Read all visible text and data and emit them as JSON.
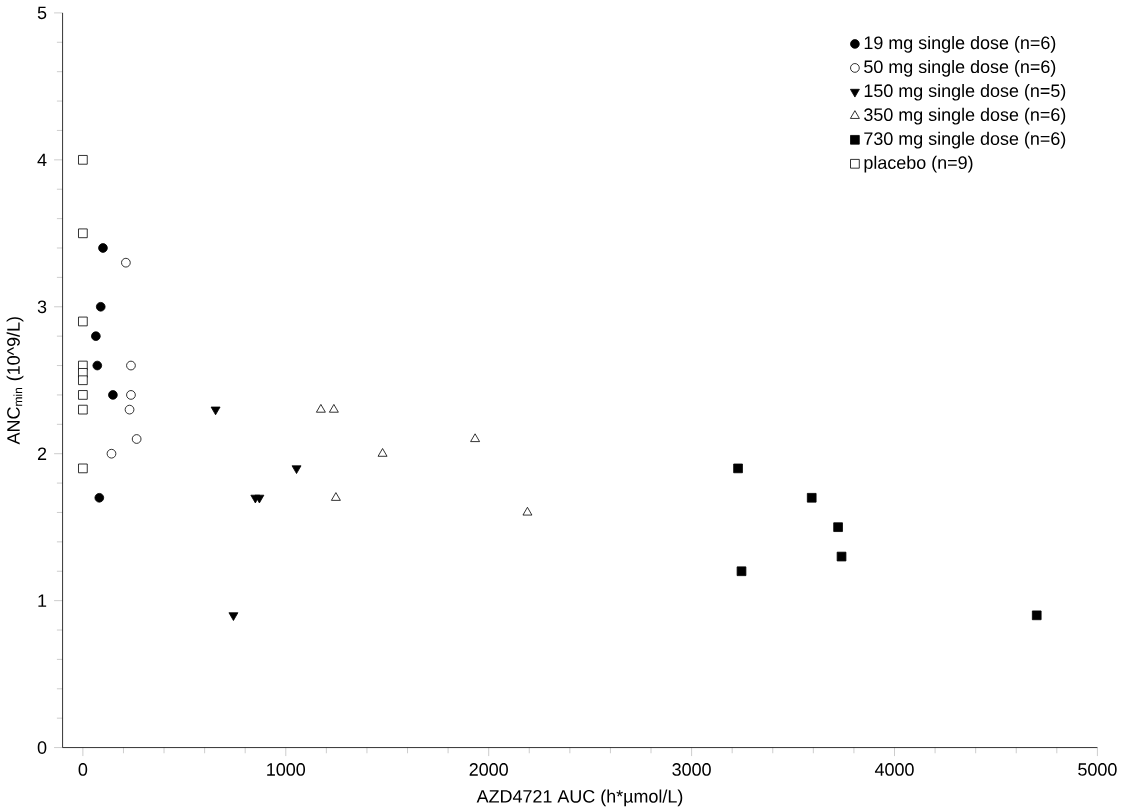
{
  "chart_data": {
    "type": "scatter",
    "xlabel": "AZD4721 AUC (h*µmol/L)",
    "ylabel": "ANC$_{min}$ (10^9/L)",
    "xlim": [
      -100,
      5000
    ],
    "ylim": [
      0,
      5
    ],
    "xticks": [
      0,
      1000,
      2000,
      3000,
      4000,
      5000
    ],
    "yticks": [
      0,
      1,
      2,
      3,
      4,
      5
    ],
    "legend": "top right",
    "grid": false,
    "series": [
      {
        "name": "19 mg single dose (n=6)",
        "color": "#000000",
        "marker": "circle",
        "x": [
          99,
          88,
          64,
          71,
          148,
          81
        ],
        "values": [
          3.4,
          3.0,
          2.8,
          2.6,
          2.4,
          1.7
        ]
      },
      {
        "name": "50 mg single dose (n=6)",
        "color": "#ffffff",
        "marker": "circle",
        "x": [
          212,
          237,
          237,
          230,
          265,
          141
        ],
        "values": [
          3.3,
          2.6,
          2.4,
          2.3,
          2.1,
          2.0
        ]
      },
      {
        "name": "150 mg single dose (n=5)",
        "color": "#000000",
        "marker": "triangle",
        "x": [
          654,
          742,
          850,
          870,
          1053
        ],
        "values": [
          2.3,
          0.9,
          1.7,
          1.7,
          1.9
        ]
      },
      {
        "name": "350 mg single dose (n=6)",
        "color": "#ffffff",
        "marker": "triangle",
        "x": [
          1173,
          1237,
          1247,
          1477,
          1933,
          2191
        ],
        "values": [
          2.3,
          2.3,
          1.7,
          2.0,
          2.1,
          1.6
        ]
      },
      {
        "name": "730 mg single dose (n=6)",
        "color": "#000000",
        "marker": "square",
        "x": [
          3229,
          3246,
          3592,
          3722,
          3739,
          4701
        ],
        "values": [
          1.9,
          1.2,
          1.7,
          1.5,
          1.3,
          0.9
        ]
      },
      {
        "name": "placebo (n=9)",
        "color": "#ffffff",
        "marker": "square",
        "x": [
          0,
          0,
          0,
          0,
          0,
          0,
          0,
          0,
          0
        ],
        "values": [
          4.0,
          3.5,
          2.9,
          2.6,
          2.55,
          2.5,
          2.4,
          2.3,
          1.9
        ]
      }
    ]
  }
}
